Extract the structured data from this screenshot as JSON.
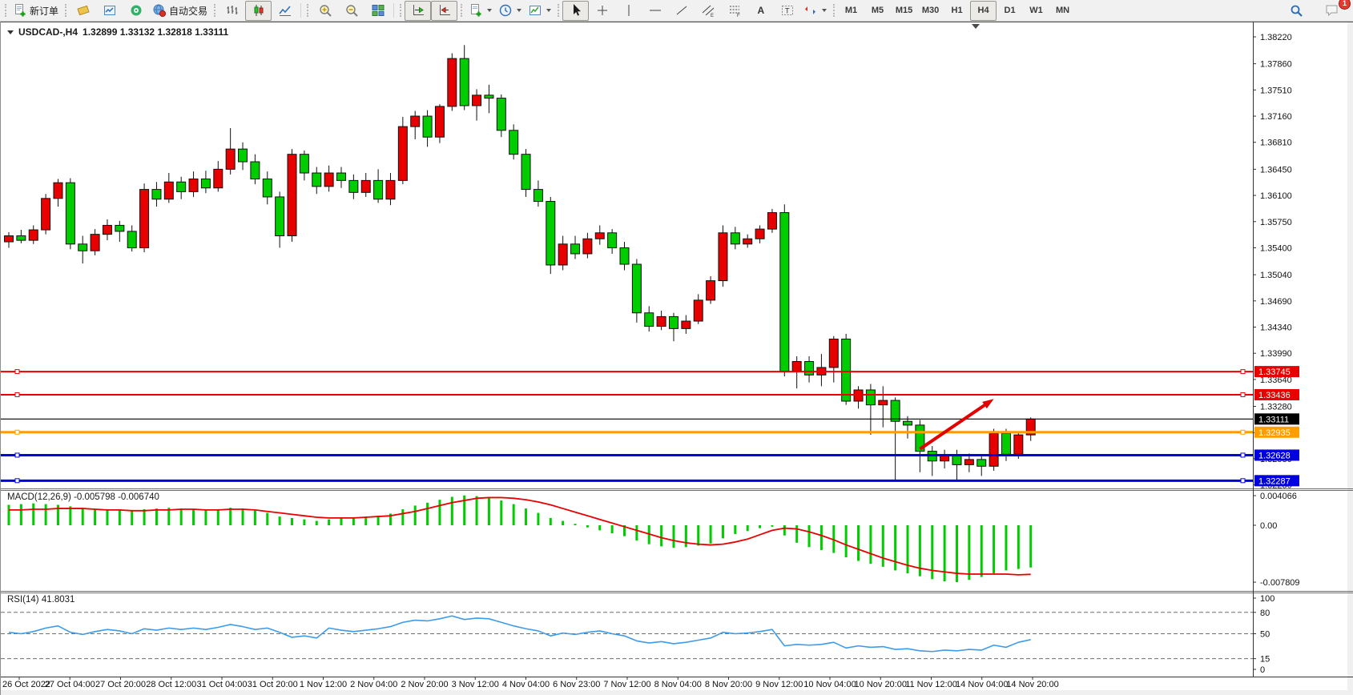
{
  "toolbar": {
    "new_order_label": "新订单",
    "autotrade_label": "自动交易",
    "timeframes": [
      "M1",
      "M5",
      "M15",
      "M30",
      "H1",
      "H4",
      "D1",
      "W1",
      "MN"
    ],
    "selected_timeframe": "H4",
    "notification_count": "1",
    "groups": [
      {
        "items": [
          {
            "name": "new-order-button",
            "icon": "doc-plus",
            "label": "新订单"
          }
        ]
      },
      {
        "items": [
          {
            "name": "market-watch-button",
            "icon": "book"
          },
          {
            "name": "chart-window-button",
            "icon": "chart-window"
          },
          {
            "name": "navigator-button",
            "icon": "signal"
          },
          {
            "name": "autotrade-button",
            "icon": "globe-red",
            "label": "自动交易"
          }
        ]
      },
      {
        "items": [
          {
            "name": "ohlc-bars-button",
            "icon": "ohlc-bars"
          },
          {
            "name": "candlestick-button",
            "icon": "candles",
            "selected": true
          },
          {
            "name": "line-chart-button",
            "icon": "line-chart"
          }
        ]
      },
      {
        "items": [
          {
            "name": "zoom-in-button",
            "icon": "zoom-in"
          },
          {
            "name": "zoom-out-button",
            "icon": "zoom-out"
          },
          {
            "name": "tile-windows-button",
            "icon": "tile-windows"
          }
        ]
      },
      {
        "items": [
          {
            "name": "auto-scroll-button",
            "icon": "auto-scroll",
            "selected": true
          },
          {
            "name": "chart-shift-button",
            "icon": "chart-shift",
            "selected": true
          }
        ]
      },
      {
        "items": [
          {
            "name": "indicators-button",
            "icon": "indicators",
            "dropdown": true
          },
          {
            "name": "periods-button",
            "icon": "periods",
            "dropdown": true
          },
          {
            "name": "templates-button",
            "icon": "templates",
            "dropdown": true
          }
        ]
      },
      {
        "items": [
          {
            "name": "cursor-button",
            "icon": "cursor",
            "selected": true
          },
          {
            "name": "crosshair-button",
            "icon": "crosshair"
          },
          {
            "name": "vertical-line-button",
            "icon": "vline"
          },
          {
            "name": "horizontal-line-button",
            "icon": "hline"
          },
          {
            "name": "trendline-button",
            "icon": "trendline"
          },
          {
            "name": "channel-button",
            "icon": "channel"
          },
          {
            "name": "fibonacci-button",
            "icon": "fibonacci"
          },
          {
            "name": "text-button",
            "icon": "text"
          },
          {
            "name": "text-label-button",
            "icon": "text-label"
          },
          {
            "name": "arrows-button",
            "icon": "arrows",
            "dropdown": true
          }
        ]
      }
    ]
  },
  "chart": {
    "title": {
      "symbol": "USDCAD-,H4",
      "ohlc": "1.32899 1.33132 1.32818 1.33111"
    },
    "macd_name": "MACD(12,26,9)",
    "macd_values": "-0.005798 -0.006740",
    "rsi_name": "RSI(14)",
    "rsi_value": "41.8031"
  },
  "colors": {
    "bull": "#e80000",
    "bear": "#00cd00",
    "wick": "#111111",
    "macd_hist": "#00cd00",
    "macd_signal": "#e80000",
    "rsi_line": "#3d9bea",
    "line_red": "#e80000",
    "line_orange": "#ff9d00",
    "line_blue": "#0000dd",
    "current_price": "#000000",
    "arrow": "#e30000"
  },
  "chart_data": [
    {
      "type": "candlestick",
      "symbol": "USDCAD-",
      "timeframe": "H4",
      "last_ohlc": {
        "open": 1.32899,
        "high": 1.33132,
        "low": 1.32818,
        "close": 1.33111
      },
      "y_ticks": [
        "1.38220",
        "1.37860",
        "1.37510",
        "1.37160",
        "1.36810",
        "1.36450",
        "1.36100",
        "1.35750",
        "1.35400",
        "1.35040",
        "1.34690",
        "1.34340",
        "1.33990",
        "1.33640",
        "1.33280",
        "1.32930",
        "1.32580",
        "1.32230"
      ],
      "x_labels": [
        "26 Oct 2022",
        "27 Oct 04:00",
        "27 Oct 20:00",
        "28 Oct 12:00",
        "31 Oct 04:00",
        "31 Oct 20:00",
        "1 Nov 12:00",
        "2 Nov 04:00",
        "2 Nov 20:00",
        "3 Nov 12:00",
        "4 Nov 04:00",
        "6 Nov 23:00",
        "7 Nov 12:00",
        "8 Nov 04:00",
        "8 Nov 20:00",
        "9 Nov 12:00",
        "10 Nov 04:00",
        "10 Nov 20:00",
        "11 Nov 12:00",
        "14 Nov 04:00",
        "14 Nov 20:00"
      ],
      "hlines": [
        {
          "price": 1.33745,
          "label": "1.33745",
          "color": "#e80000",
          "width": 2
        },
        {
          "price": 1.33436,
          "label": "1.33436",
          "color": "#e80000",
          "width": 2
        },
        {
          "price": 1.32935,
          "label": "1.32935",
          "color": "#ff9d00",
          "width": 3
        },
        {
          "price": 1.32628,
          "label": "1.32628",
          "color": "#0000dd",
          "width": 3
        },
        {
          "price": 1.32287,
          "label": "1.32287",
          "color": "#0000dd",
          "width": 3
        }
      ],
      "current_price": {
        "price": 1.33111,
        "label": "1.33111",
        "color": "#000000"
      },
      "arrow_annotation": {
        "from_bar": 74,
        "from_price": 1.3271,
        "to_bar": 80,
        "to_price": 1.3338,
        "color": "#e30000",
        "direction": "up-right"
      },
      "candles_ohlc": [
        [
          1.3548,
          1.3561,
          1.354,
          1.3556
        ],
        [
          1.3556,
          1.3564,
          1.3546,
          1.355
        ],
        [
          1.355,
          1.357,
          1.3545,
          1.3564
        ],
        [
          1.3564,
          1.3612,
          1.3558,
          1.3606
        ],
        [
          1.3606,
          1.3632,
          1.3595,
          1.3627
        ],
        [
          1.3627,
          1.3633,
          1.3538,
          1.3545
        ],
        [
          1.3545,
          1.3556,
          1.3519,
          1.3536
        ],
        [
          1.3536,
          1.3565,
          1.353,
          1.3558
        ],
        [
          1.3558,
          1.3578,
          1.355,
          1.357
        ],
        [
          1.357,
          1.3576,
          1.3548,
          1.3562
        ],
        [
          1.3562,
          1.357,
          1.3535,
          1.354
        ],
        [
          1.354,
          1.3626,
          1.3534,
          1.3618
        ],
        [
          1.3618,
          1.3628,
          1.3595,
          1.3605
        ],
        [
          1.3605,
          1.364,
          1.36,
          1.3628
        ],
        [
          1.3628,
          1.3635,
          1.3605,
          1.3615
        ],
        [
          1.3615,
          1.3642,
          1.3608,
          1.3632
        ],
        [
          1.3632,
          1.3643,
          1.3613,
          1.362
        ],
        [
          1.362,
          1.3656,
          1.3615,
          1.3645
        ],
        [
          1.3645,
          1.37,
          1.3638,
          1.3672
        ],
        [
          1.3672,
          1.3681,
          1.3644,
          1.3655
        ],
        [
          1.3655,
          1.3665,
          1.3625,
          1.3632
        ],
        [
          1.3632,
          1.3642,
          1.3598,
          1.3608
        ],
        [
          1.3608,
          1.3615,
          1.354,
          1.3556
        ],
        [
          1.3556,
          1.3672,
          1.3548,
          1.3665
        ],
        [
          1.3665,
          1.367,
          1.363,
          1.364
        ],
        [
          1.364,
          1.3648,
          1.3612,
          1.3622
        ],
        [
          1.3622,
          1.365,
          1.3615,
          1.364
        ],
        [
          1.364,
          1.3648,
          1.362,
          1.363
        ],
        [
          1.363,
          1.3638,
          1.3605,
          1.3614
        ],
        [
          1.3614,
          1.364,
          1.3608,
          1.363
        ],
        [
          1.363,
          1.3645,
          1.36,
          1.3605
        ],
        [
          1.3605,
          1.364,
          1.3597,
          1.363
        ],
        [
          1.363,
          1.3715,
          1.3625,
          1.3702
        ],
        [
          1.3702,
          1.3723,
          1.3685,
          1.3716
        ],
        [
          1.3716,
          1.3724,
          1.3675,
          1.3688
        ],
        [
          1.3688,
          1.3732,
          1.368,
          1.3729
        ],
        [
          1.3729,
          1.38,
          1.3723,
          1.3793
        ],
        [
          1.3793,
          1.3811,
          1.3724,
          1.373
        ],
        [
          1.373,
          1.3752,
          1.371,
          1.3744
        ],
        [
          1.3744,
          1.3758,
          1.372,
          1.374
        ],
        [
          1.374,
          1.3745,
          1.3688,
          1.3697
        ],
        [
          1.3697,
          1.3705,
          1.3658,
          1.3665
        ],
        [
          1.3665,
          1.3672,
          1.3608,
          1.3618
        ],
        [
          1.3618,
          1.363,
          1.3595,
          1.3602
        ],
        [
          1.3602,
          1.3608,
          1.3505,
          1.3517
        ],
        [
          1.3517,
          1.3556,
          1.351,
          1.3545
        ],
        [
          1.3545,
          1.3556,
          1.3525,
          1.3532
        ],
        [
          1.3532,
          1.356,
          1.3526,
          1.3552
        ],
        [
          1.3552,
          1.357,
          1.3544,
          1.356
        ],
        [
          1.356,
          1.3565,
          1.3532,
          1.354
        ],
        [
          1.354,
          1.3548,
          1.351,
          1.3518
        ],
        [
          1.3518,
          1.3525,
          1.344,
          1.3453
        ],
        [
          1.3453,
          1.3462,
          1.3428,
          1.3435
        ],
        [
          1.3435,
          1.3456,
          1.343,
          1.3448
        ],
        [
          1.3448,
          1.3453,
          1.3415,
          1.3432
        ],
        [
          1.3432,
          1.345,
          1.3425,
          1.3442
        ],
        [
          1.3442,
          1.3478,
          1.3438,
          1.347
        ],
        [
          1.347,
          1.3502,
          1.3465,
          1.3496
        ],
        [
          1.3496,
          1.357,
          1.3488,
          1.356
        ],
        [
          1.356,
          1.3568,
          1.3538,
          1.3545
        ],
        [
          1.3545,
          1.3558,
          1.354,
          1.3552
        ],
        [
          1.3552,
          1.357,
          1.3546,
          1.3565
        ],
        [
          1.3565,
          1.3592,
          1.356,
          1.3587
        ],
        [
          1.3587,
          1.3598,
          1.3368,
          1.3375
        ],
        [
          1.3375,
          1.3395,
          1.3352,
          1.3388
        ],
        [
          1.3388,
          1.3395,
          1.336,
          1.337
        ],
        [
          1.337,
          1.3398,
          1.3355,
          1.338
        ],
        [
          1.338,
          1.3422,
          1.336,
          1.3418
        ],
        [
          1.3418,
          1.3425,
          1.333,
          1.3335
        ],
        [
          1.3335,
          1.3355,
          1.3325,
          1.335
        ],
        [
          1.335,
          1.3358,
          1.329,
          1.333
        ],
        [
          1.333,
          1.3355,
          1.33,
          1.3336
        ],
        [
          1.3336,
          1.334,
          1.3229,
          1.3308
        ],
        [
          1.3308,
          1.3315,
          1.3285,
          1.3303
        ],
        [
          1.3303,
          1.331,
          1.324,
          1.3268
        ],
        [
          1.3268,
          1.3275,
          1.3235,
          1.3255
        ],
        [
          1.3255,
          1.327,
          1.3245,
          1.3262
        ],
        [
          1.3262,
          1.327,
          1.323,
          1.325
        ],
        [
          1.325,
          1.3265,
          1.324,
          1.3257
        ],
        [
          1.3257,
          1.3264,
          1.3235,
          1.3248
        ],
        [
          1.3248,
          1.3298,
          1.3242,
          1.3292
        ],
        [
          1.3292,
          1.3298,
          1.3255,
          1.3264
        ],
        [
          1.3264,
          1.3293,
          1.3258,
          1.32899
        ],
        [
          1.32899,
          1.33132,
          1.32818,
          1.33111
        ]
      ]
    },
    {
      "type": "bar",
      "name": "MACD(12,26,9)",
      "value_main": -0.005798,
      "value_signal": -0.00674,
      "y_ticks": [
        {
          "label": "0.004066",
          "value": 0.004066
        },
        {
          "label": "0.00",
          "value": 0
        },
        {
          "label": "-0.007809",
          "value": -0.007809
        }
      ],
      "histogram": [
        0.0028,
        0.0029,
        0.003,
        0.0029,
        0.0028,
        0.0026,
        0.0024,
        0.0022,
        0.0021,
        0.0022,
        0.002,
        0.0022,
        0.0023,
        0.0024,
        0.0023,
        0.0022,
        0.0021,
        0.0022,
        0.0024,
        0.0023,
        0.002,
        0.0017,
        0.0012,
        0.001,
        0.0008,
        0.0006,
        0.0008,
        0.001,
        0.0011,
        0.0012,
        0.0013,
        0.0016,
        0.0022,
        0.0027,
        0.0031,
        0.0035,
        0.0039,
        0.0041,
        0.004,
        0.0038,
        0.0034,
        0.0029,
        0.0023,
        0.0017,
        0.001,
        0.0006,
        0.0002,
        -0.0003,
        -0.0007,
        -0.0011,
        -0.0015,
        -0.0021,
        -0.0026,
        -0.0029,
        -0.0031,
        -0.003,
        -0.0028,
        -0.0025,
        -0.0018,
        -0.0012,
        -0.0008,
        -0.0004,
        -0.0002,
        -0.0014,
        -0.0024,
        -0.003,
        -0.0034,
        -0.0038,
        -0.0044,
        -0.0049,
        -0.0053,
        -0.0057,
        -0.0062,
        -0.0066,
        -0.007,
        -0.0074,
        -0.0077,
        -0.0078,
        -0.0075,
        -0.0071,
        -0.0066,
        -0.0062,
        -0.006,
        -0.005798
      ],
      "signal": [
        0.0021,
        0.0021,
        0.0022,
        0.0022,
        0.0023,
        0.0023,
        0.0023,
        0.0022,
        0.0021,
        0.0021,
        0.002,
        0.002,
        0.0021,
        0.0021,
        0.0022,
        0.0022,
        0.0021,
        0.0021,
        0.0022,
        0.0022,
        0.0021,
        0.0019,
        0.0017,
        0.0015,
        0.0013,
        0.0011,
        0.001,
        0.001,
        0.001,
        0.0011,
        0.0012,
        0.0013,
        0.0016,
        0.0019,
        0.0023,
        0.0027,
        0.0031,
        0.0034,
        0.0037,
        0.0038,
        0.0038,
        0.0037,
        0.0035,
        0.0032,
        0.0028,
        0.0023,
        0.0018,
        0.0013,
        0.0008,
        0.0003,
        -0.0002,
        -0.0007,
        -0.0012,
        -0.0017,
        -0.0021,
        -0.0024,
        -0.0026,
        -0.0027,
        -0.0026,
        -0.0023,
        -0.0019,
        -0.0013,
        -0.0007,
        -0.0004,
        -0.0005,
        -0.0009,
        -0.0014,
        -0.002,
        -0.0027,
        -0.0033,
        -0.0039,
        -0.0045,
        -0.005,
        -0.0055,
        -0.0059,
        -0.0062,
        -0.0064,
        -0.0066,
        -0.0067,
        -0.0067,
        -0.0067,
        -0.0067,
        -0.0068,
        -0.00674
      ]
    },
    {
      "type": "line",
      "name": "RSI(14)",
      "value": 41.8031,
      "levels": [
        80,
        50,
        15
      ],
      "y_ticks": [
        {
          "label": "100",
          "value": 100
        },
        {
          "label": "80",
          "value": 80
        },
        {
          "label": "50",
          "value": 50
        },
        {
          "label": "15",
          "value": 15
        },
        {
          "label": "0",
          "value": 0
        }
      ],
      "values": [
        52,
        50,
        53,
        58,
        61,
        52,
        49,
        53,
        56,
        54,
        50,
        57,
        55,
        58,
        56,
        58,
        56,
        59,
        63,
        60,
        56,
        58,
        52,
        45,
        47,
        44,
        58,
        55,
        53,
        55,
        57,
        60,
        66,
        69,
        68,
        71,
        75,
        70,
        72,
        71,
        66,
        61,
        57,
        54,
        47,
        51,
        49,
        52,
        54,
        50,
        47,
        40,
        37,
        39,
        36,
        38,
        41,
        44,
        52,
        50,
        51,
        53,
        56,
        33,
        35,
        34,
        35,
        38,
        30,
        33,
        31,
        32,
        28,
        29,
        26,
        25,
        27,
        26,
        28,
        27,
        34,
        31,
        38,
        41.8031
      ]
    }
  ]
}
